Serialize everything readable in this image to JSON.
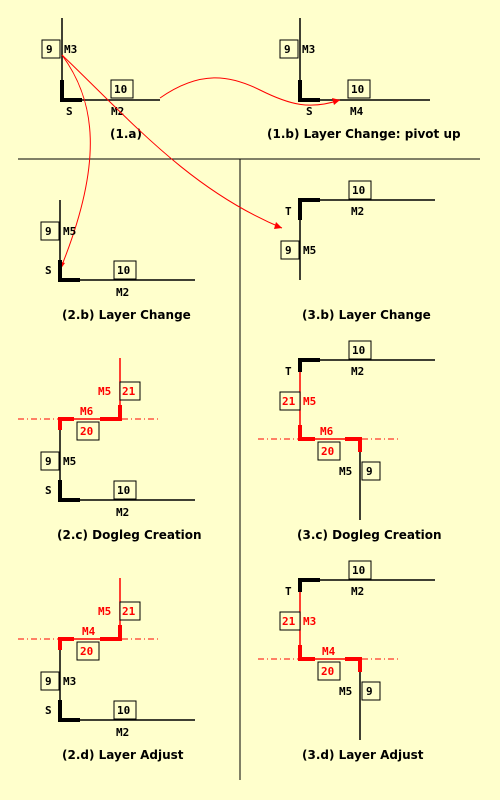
{
  "captions": {
    "c1a": "(1.a)",
    "c1b": "(1.b) Layer Change: pivot up",
    "c2b": "(2.b) Layer Change",
    "c3b": "(3.b) Layer Change",
    "c2c": "(2.c) Dogleg Creation",
    "c3c": "(3.c) Dogleg Creation",
    "c2d": "(2.d) Layer Adjust",
    "c3d": "(3.d) Layer Adjust"
  },
  "labels": {
    "p1a": {
      "n9": "9",
      "m3": "M3",
      "n10": "10",
      "s": "S",
      "m2": "M2"
    },
    "p1b": {
      "n9": "9",
      "m3": "M3",
      "n10": "10",
      "s": "S",
      "m4": "M4"
    },
    "p2b": {
      "n9": "9",
      "m5": "M5",
      "s": "S",
      "n10": "10",
      "m2": "M2"
    },
    "p3b": {
      "n10": "10",
      "t": "T",
      "m2": "M2",
      "n9": "9",
      "m5": "M5"
    },
    "p2c": {
      "m5": "M5",
      "n21": "21",
      "m6": "M6",
      "n20": "20",
      "n9": "9",
      "m5b": "M5",
      "s": "S",
      "n10": "10",
      "m2": "M2"
    },
    "p3c": {
      "n10": "10",
      "t": "T",
      "m2": "M2",
      "n21": "21",
      "m5": "M5",
      "m6": "M6",
      "n20": "20",
      "m5b": "M5",
      "n9": "9"
    },
    "p2d": {
      "m5": "M5",
      "n21": "21",
      "m4": "M4",
      "n20": "20",
      "n9": "9",
      "m3": "M3",
      "s": "S",
      "n10": "10",
      "m2": "M2"
    },
    "p3d": {
      "n10": "10",
      "t": "T",
      "m2": "M2",
      "n21": "21",
      "m3": "M3",
      "m4": "M4",
      "n20": "20",
      "m5": "M5",
      "n9": "9"
    }
  },
  "colors": {
    "background": "#ffffcc",
    "accent": "#ff0000",
    "ink": "#000000"
  }
}
